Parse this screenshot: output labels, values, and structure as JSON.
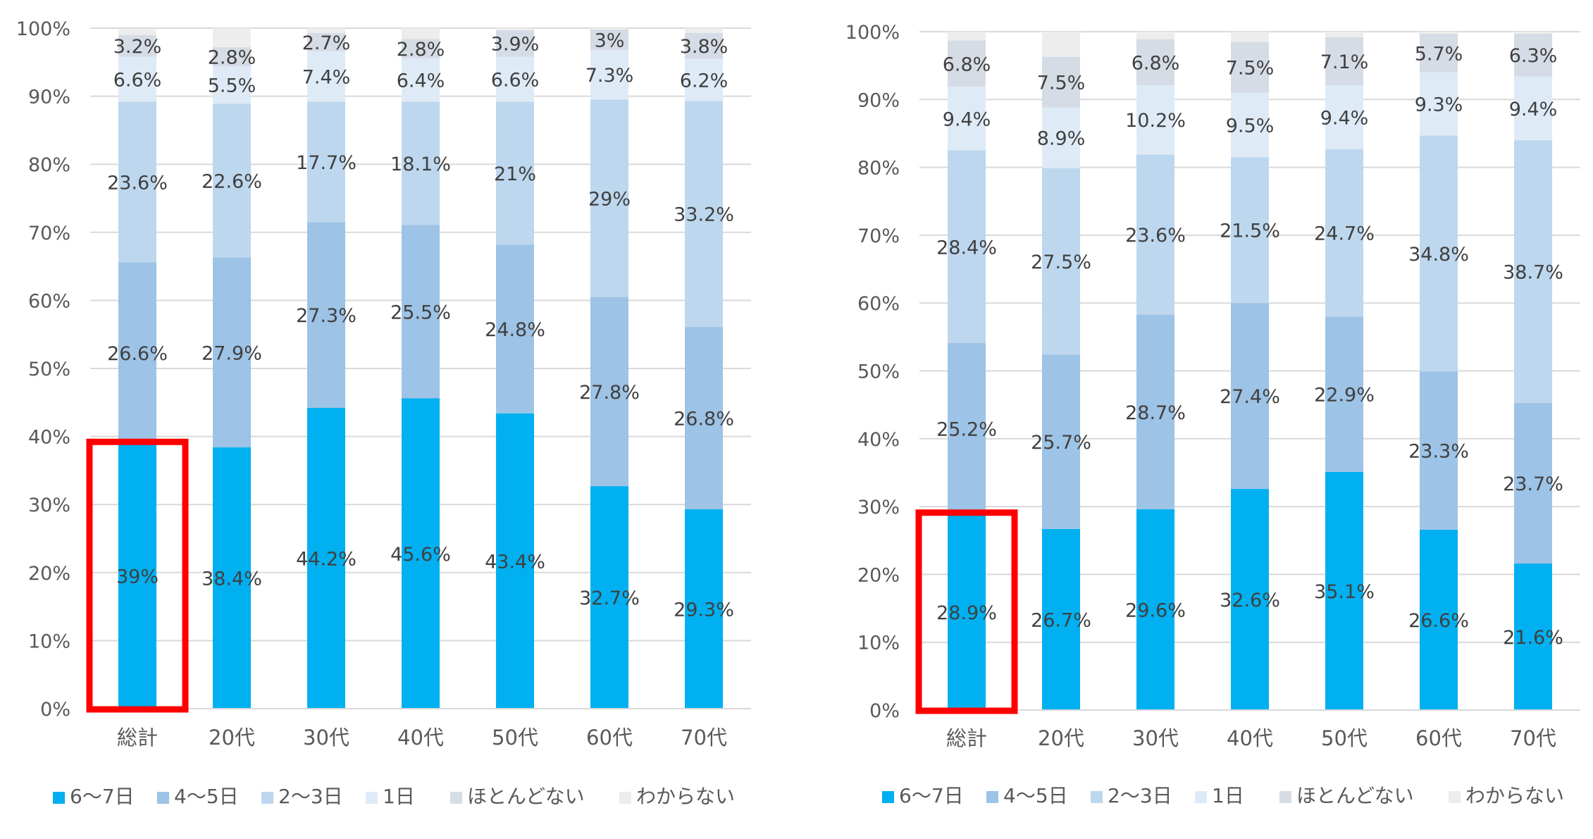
{
  "chart_data": [
    {
      "type": "bar",
      "stacked": true,
      "categories": [
        "総計",
        "20代",
        "30代",
        "40代",
        "50代",
        "60代",
        "70代"
      ],
      "ylim": [
        0,
        100
      ],
      "y_ticks": [
        "0%",
        "10%",
        "20%",
        "30%",
        "40%",
        "50%",
        "60%",
        "70%",
        "80%",
        "90%",
        "100%"
      ],
      "grid": true,
      "legend_position": "bottom",
      "highlight_category": "総計",
      "highlight_series": "6〜7日",
      "series": [
        {
          "name": "6〜7日",
          "color": "#00b0f0",
          "values": [
            39,
            38.4,
            44.2,
            45.6,
            43.4,
            32.7,
            29.3
          ],
          "labels": [
            "39%",
            "38.4%",
            "44.2%",
            "45.6%",
            "43.4%",
            "32.7%",
            "29.3%"
          ]
        },
        {
          "name": "4〜5日",
          "color": "#9dc3e6",
          "values": [
            26.6,
            27.9,
            27.3,
            25.5,
            24.8,
            27.8,
            26.8
          ],
          "labels": [
            "26.6%",
            "27.9%",
            "27.3%",
            "25.5%",
            "24.8%",
            "27.8%",
            "26.8%"
          ]
        },
        {
          "name": "2〜3日",
          "color": "#bdd7ee",
          "values": [
            23.6,
            22.6,
            17.7,
            18.1,
            21,
            29,
            33.2
          ],
          "labels": [
            "23.6%",
            "22.6%",
            "17.7%",
            "18.1%",
            "21%",
            "29%",
            "33.2%"
          ]
        },
        {
          "name": "1日",
          "color": "#deebf7",
          "values": [
            6.6,
            5.5,
            7.4,
            6.4,
            6.6,
            7.3,
            6.2
          ],
          "labels": [
            "6.6%",
            "5.5%",
            "7.4%",
            "6.4%",
            "6.6%",
            "7.3%",
            "6.2%"
          ]
        },
        {
          "name": "ほとんどない",
          "color": "#d6dce5",
          "values": [
            3.2,
            2.8,
            2.7,
            2.8,
            3.9,
            3,
            3.8
          ],
          "labels": [
            "3.2%",
            "2.8%",
            "2.7%",
            "2.8%",
            "3.9%",
            "3%",
            "3.8%"
          ]
        },
        {
          "name": "わからない",
          "color": "#ededed",
          "values": [
            0.8,
            2.8,
            0.7,
            1.6,
            0.3,
            0.2,
            0.7
          ],
          "labels": []
        }
      ]
    },
    {
      "type": "bar",
      "stacked": true,
      "categories": [
        "総計",
        "20代",
        "30代",
        "40代",
        "50代",
        "60代",
        "70代"
      ],
      "ylim": [
        0,
        100
      ],
      "y_ticks": [
        "0%",
        "10%",
        "20%",
        "30%",
        "40%",
        "50%",
        "60%",
        "70%",
        "80%",
        "90%",
        "100%"
      ],
      "grid": true,
      "legend_position": "bottom",
      "highlight_category": "総計",
      "highlight_series": "6〜7日",
      "series": [
        {
          "name": "6〜7日",
          "color": "#00b0f0",
          "values": [
            28.9,
            26.7,
            29.6,
            32.6,
            35.1,
            26.6,
            21.6
          ],
          "labels": [
            "28.9%",
            "26.7%",
            "29.6%",
            "32.6%",
            "35.1%",
            "26.6%",
            "21.6%"
          ]
        },
        {
          "name": "4〜5日",
          "color": "#9dc3e6",
          "values": [
            25.2,
            25.7,
            28.7,
            27.4,
            22.9,
            23.3,
            23.7
          ],
          "labels": [
            "25.2%",
            "25.7%",
            "28.7%",
            "27.4%",
            "22.9%",
            "23.3%",
            "23.7%"
          ]
        },
        {
          "name": "2〜3日",
          "color": "#bdd7ee",
          "values": [
            28.4,
            27.5,
            23.6,
            21.5,
            24.7,
            34.8,
            38.7
          ],
          "labels": [
            "28.4%",
            "27.5%",
            "23.6%",
            "21.5%",
            "24.7%",
            "34.8%",
            "38.7%"
          ]
        },
        {
          "name": "1日",
          "color": "#deebf7",
          "values": [
            9.4,
            8.9,
            10.2,
            9.5,
            9.4,
            9.3,
            9.4
          ],
          "labels": [
            "9.4%",
            "8.9%",
            "10.2%",
            "9.5%",
            "9.4%",
            "9.3%",
            "9.4%"
          ]
        },
        {
          "name": "ほとんどない",
          "color": "#d6dce5",
          "values": [
            6.8,
            7.5,
            6.8,
            7.5,
            7.1,
            5.7,
            6.3
          ],
          "labels": [
            "6.8%",
            "7.5%",
            "6.8%",
            "7.5%",
            "7.1%",
            "5.7%",
            "6.3%"
          ]
        },
        {
          "name": "わからない",
          "color": "#ededed",
          "values": [
            1.3,
            3.7,
            1.1,
            1.5,
            0.8,
            0.3,
            0.3
          ],
          "labels": []
        }
      ]
    }
  ],
  "colors": {
    "highlight_box": "#ff0000",
    "gridline": "#d9d9d9",
    "axis_text": "#595959",
    "data_label": "#404040"
  }
}
